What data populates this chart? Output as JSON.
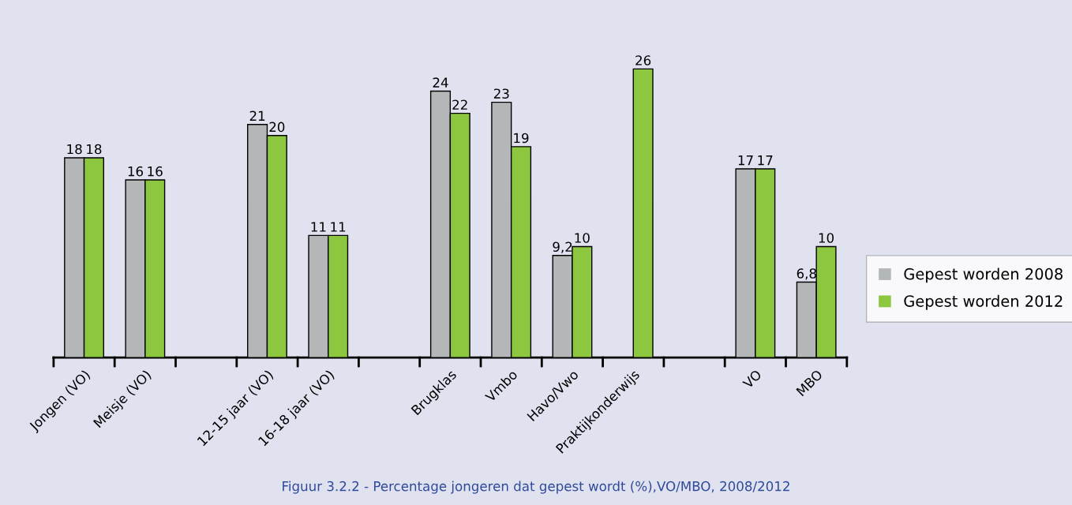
{
  "chart_data": {
    "type": "bar",
    "categories": [
      "Jongen (VO)",
      "Meisje (VO)",
      null,
      "12-15 jaar (VO)",
      "16-18 jaar (VO)",
      null,
      "Brugklas",
      "Vmbo",
      "Havo/Vwo",
      "Praktijkonderwijs",
      null,
      "VO",
      "MBO"
    ],
    "series": [
      {
        "name": "Gepest worden 2008",
        "color": "#b4b7b8",
        "values": [
          18,
          16,
          null,
          21,
          11,
          null,
          24,
          23,
          9.2,
          null,
          null,
          17,
          6.8
        ],
        "value_labels": [
          "18",
          "16",
          null,
          "21",
          "11",
          null,
          "24",
          "23",
          "9,2",
          null,
          null,
          "17",
          "6,8"
        ]
      },
      {
        "name": "Gepest worden 2012",
        "color": "#8dc63f",
        "values": [
          18,
          16,
          null,
          20,
          11,
          null,
          22,
          19,
          10,
          26,
          null,
          17,
          10
        ],
        "value_labels": [
          "18",
          "16",
          null,
          "20",
          "11",
          null,
          "22",
          "19",
          "10",
          "26",
          null,
          "17",
          "10"
        ]
      }
    ],
    "legend": "right",
    "grid": false,
    "annotations": [
      "Figuur 3.2.2 - Percentage jongeren dat gepest wordt (%),VO/MBO, 2008/2012"
    ]
  }
}
